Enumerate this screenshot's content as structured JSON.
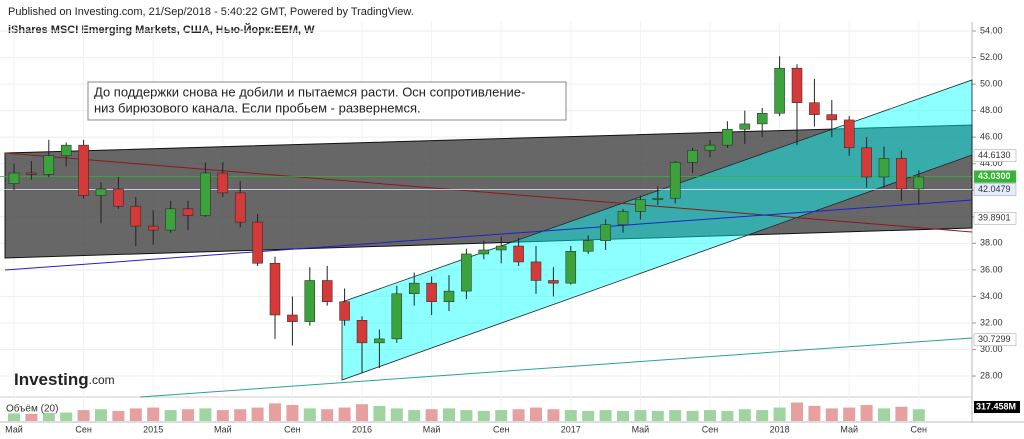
{
  "header": {
    "published": "Published on Investing.com, 21/Sep/2018 - 5:40:22 GMT, Powered by TradingView.",
    "symbol": "iShares MSCI Emerging Markets, США, Нью-Йорк:EEM, W"
  },
  "annotation": [
    "До поддержки снова не добили и пытаемся расти. Осн сопротивление-",
    "низ бирюзового канала. Если пробьем - развернемся."
  ],
  "logo": {
    "brand": "Investing",
    "suffix": ".com"
  },
  "chart_data": {
    "type": "candlestick",
    "categories": [
      "Май",
      null,
      null,
      null,
      "Сен",
      null,
      null,
      null,
      "2015",
      null,
      null,
      null,
      "Май",
      null,
      null,
      null,
      "Сен",
      null,
      null,
      null,
      "2016",
      null,
      null,
      null,
      "Май",
      null,
      null,
      null,
      "Сен",
      null,
      null,
      null,
      "2017",
      null,
      null,
      null,
      "Май",
      null,
      null,
      null,
      "Сен",
      null,
      null,
      null,
      "2018",
      null,
      null,
      null,
      "Май",
      null,
      null,
      null,
      "Сен"
    ],
    "open": [
      42.5,
      43.3,
      43.2,
      44.6,
      45.4,
      41.6,
      42.1,
      40.8,
      39.3,
      39.0,
      40.6,
      40.1,
      43.3,
      41.8,
      39.6,
      36.5,
      32.6,
      32.1,
      35.2,
      33.6,
      32.2,
      30.5,
      30.8,
      34.2,
      35.0,
      33.6,
      34.4,
      37.2,
      37.5,
      37.8,
      36.6,
      35.2,
      35.0,
      37.4,
      38.2,
      39.4,
      40.4,
      41.3,
      41.4,
      44.1,
      45.0,
      45.4,
      46.6,
      47.0,
      47.8,
      51.2,
      48.6,
      47.7,
      47.3,
      45.2,
      43.0,
      44.4,
      42.1
    ],
    "high": [
      44.0,
      44.2,
      45.8,
      45.6,
      45.8,
      42.6,
      43.0,
      41.5,
      40.5,
      41.2,
      41.2,
      44.1,
      44.1,
      42.7,
      40.2,
      37.0,
      34.0,
      36.2,
      36.3,
      34.6,
      32.5,
      31.5,
      34.8,
      35.8,
      35.5,
      35.6,
      37.6,
      38.2,
      38.5,
      38.4,
      37.8,
      36.2,
      37.8,
      38.6,
      39.8,
      40.6,
      41.6,
      42.3,
      44.2,
      45.2,
      45.8,
      47.2,
      48.0,
      48.2,
      52.1,
      51.5,
      50.4,
      48.8,
      47.6,
      46.0,
      45.3,
      45.0,
      43.5
    ],
    "low": [
      42.0,
      42.8,
      43.0,
      43.8,
      41.4,
      39.5,
      40.6,
      37.8,
      37.9,
      38.8,
      39.0,
      40.0,
      41.5,
      39.2,
      36.3,
      30.8,
      30.3,
      31.8,
      33.3,
      31.8,
      28.2,
      28.6,
      30.5,
      33.3,
      32.6,
      32.9,
      33.8,
      36.8,
      36.5,
      36.3,
      34.2,
      34.0,
      34.9,
      37.2,
      37.5,
      38.8,
      39.8,
      40.9,
      41.0,
      43.3,
      44.5,
      45.2,
      45.5,
      46.0,
      47.6,
      45.4,
      46.8,
      46.0,
      44.6,
      42.2,
      42.2,
      41.2,
      40.9
    ],
    "close": [
      43.3,
      43.2,
      44.6,
      45.4,
      41.6,
      42.1,
      40.8,
      39.3,
      39.0,
      40.6,
      40.1,
      43.3,
      41.8,
      39.6,
      36.5,
      32.6,
      32.1,
      35.2,
      33.6,
      32.2,
      30.5,
      30.8,
      34.2,
      35.0,
      33.6,
      34.4,
      37.2,
      37.5,
      37.8,
      36.6,
      35.2,
      35.0,
      37.4,
      38.2,
      39.4,
      40.4,
      41.3,
      41.4,
      44.1,
      45.0,
      45.4,
      46.6,
      47.0,
      47.8,
      51.2,
      48.6,
      47.7,
      47.3,
      45.2,
      43.0,
      44.4,
      42.1,
      43.0
    ],
    "up_color": "#3ca33c",
    "down_color": "#d43a3a",
    "ylim": [
      26.42,
      54.68
    ],
    "yticks": [
      {
        "value": 28,
        "label": "28.00"
      },
      {
        "value": 30,
        "label": "30.00"
      },
      {
        "value": 32,
        "label": "32.00"
      },
      {
        "value": 34,
        "label": "34.00"
      },
      {
        "value": 36,
        "label": "36.00"
      },
      {
        "value": 38,
        "label": "38.00"
      },
      {
        "value": 40,
        "label": "40.00"
      },
      {
        "value": 42,
        "label": "42.00"
      },
      {
        "value": 44,
        "label": "44.00"
      },
      {
        "value": 46,
        "label": "46.00"
      },
      {
        "value": 48,
        "label": "48.00"
      },
      {
        "value": 50,
        "label": "50.00"
      },
      {
        "value": 52,
        "label": "52.00"
      },
      {
        "value": 54,
        "label": "54.00"
      }
    ],
    "price_levels": [
      {
        "value": 44.613,
        "label": "44.6130",
        "color": "#ffffff"
      },
      {
        "value": 43.03,
        "label": "43.0300",
        "color": "#2db82d"
      },
      {
        "value": 42.0479,
        "color": "#e6ecff"
      },
      {
        "value": 39.8901,
        "color": "#ffffff"
      },
      {
        "value": 30.7299,
        "color": "#ffffff"
      }
    ],
    "volume": {
      "name": "Объём (20)",
      "values": [
        900,
        850,
        950,
        1000,
        1300,
        1400,
        1200,
        1500,
        1600,
        1300,
        1400,
        1500,
        1300,
        1400,
        1600,
        2100,
        1900,
        1500,
        1400,
        1600,
        2000,
        1800,
        1500,
        1300,
        1400,
        1500,
        1300,
        1200,
        1300,
        1400,
        1600,
        1400,
        1300,
        1200,
        1300,
        1200,
        1300,
        1200,
        1300,
        1200,
        1300,
        1200,
        1400,
        1300,
        1600,
        2200,
        1800,
        1500,
        1600,
        1900,
        1500,
        1700,
        1400
      ],
      "ylim": [
        0,
        2500
      ],
      "last": {
        "value": 317.458,
        "label": "317.458M"
      }
    }
  }
}
